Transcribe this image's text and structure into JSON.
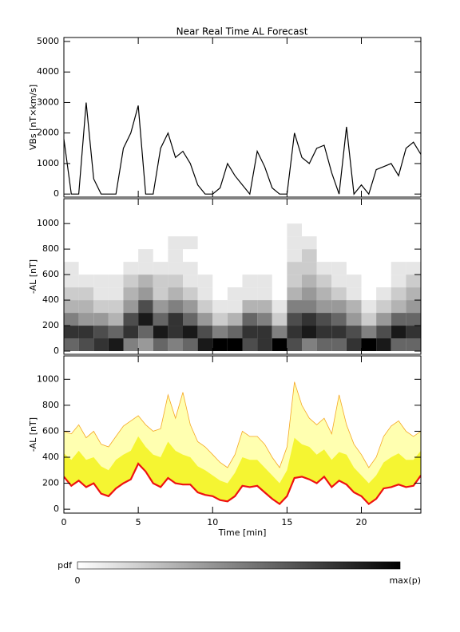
{
  "chart_data": [
    {
      "type": "line",
      "title": "Near Real Time AL Forecast",
      "ylabel": "VBs [nT×km/s]",
      "x": [
        0,
        0.5,
        1,
        1.5,
        2,
        2.5,
        3,
        3.5,
        4,
        4.5,
        5,
        5.5,
        6,
        6.5,
        7,
        7.5,
        8,
        8.5,
        9,
        9.5,
        10,
        10.5,
        11,
        11.5,
        12,
        12.5,
        13,
        13.5,
        14,
        14.5,
        15,
        15.5,
        16,
        16.5,
        17,
        17.5,
        18,
        18.5,
        19,
        19.5,
        20,
        20.5,
        21,
        21.5,
        22,
        22.5,
        23,
        23.5,
        24
      ],
      "series": [
        {
          "color": "#000000",
          "values": [
            1800,
            0,
            0,
            3000,
            500,
            0,
            0,
            0,
            1500,
            2000,
            2900,
            0,
            0,
            1500,
            2000,
            1200,
            1400,
            1000,
            300,
            0,
            0,
            200,
            1000,
            600,
            300,
            0,
            1400,
            900,
            200,
            0,
            0,
            2000,
            1200,
            1000,
            1500,
            1600,
            700,
            0,
            2200,
            0,
            300,
            0,
            800,
            900,
            1000,
            600,
            1500,
            1700,
            1300
          ]
        }
      ],
      "xlim": [
        0,
        24
      ],
      "xticks": [
        0,
        5,
        10,
        15,
        20
      ],
      "show_xtick_labels": false,
      "ylim": [
        -100,
        5130
      ],
      "yticks": [
        0,
        1000,
        2000,
        3000,
        4000,
        5000
      ]
    },
    {
      "type": "heatmap",
      "ylabel": "-AL [nT]",
      "x_bins": [
        0,
        1,
        2,
        3,
        4,
        5,
        6,
        7,
        8,
        9,
        10,
        11,
        12,
        13,
        14,
        15,
        16,
        17,
        18,
        19,
        20,
        21,
        22,
        23,
        24
      ],
      "y_bins": [
        0,
        100,
        200,
        300,
        400,
        500,
        600,
        700,
        800,
        900,
        1000
      ],
      "values": [
        [
          0.6,
          0.8,
          0.5,
          0.3,
          0.2,
          0.1,
          0.1,
          0,
          0,
          0
        ],
        [
          0.7,
          0.8,
          0.4,
          0.3,
          0.2,
          0.1,
          0,
          0,
          0,
          0
        ],
        [
          0.8,
          0.7,
          0.4,
          0.2,
          0.1,
          0.1,
          0,
          0,
          0,
          0
        ],
        [
          0.9,
          0.6,
          0.3,
          0.2,
          0.1,
          0.1,
          0,
          0,
          0,
          0
        ],
        [
          0.5,
          0.8,
          0.7,
          0.4,
          0.3,
          0.2,
          0.1,
          0,
          0,
          0
        ],
        [
          0.4,
          0.6,
          0.9,
          0.7,
          0.4,
          0.3,
          0.1,
          0.1,
          0,
          0
        ],
        [
          0.6,
          0.9,
          0.6,
          0.4,
          0.2,
          0.2,
          0.1,
          0,
          0,
          0
        ],
        [
          0.5,
          0.8,
          0.8,
          0.5,
          0.3,
          0.2,
          0.1,
          0.1,
          0.1,
          0
        ],
        [
          0.6,
          0.9,
          0.6,
          0.4,
          0.2,
          0.1,
          0.1,
          0,
          0.1,
          0
        ],
        [
          0.9,
          0.7,
          0.4,
          0.2,
          0.1,
          0.1,
          0,
          0,
          0,
          0
        ],
        [
          1,
          0.5,
          0.2,
          0.1,
          0,
          0,
          0,
          0,
          0,
          0
        ],
        [
          1,
          0.6,
          0.3,
          0.1,
          0.1,
          0,
          0,
          0,
          0,
          0
        ],
        [
          0.7,
          0.8,
          0.6,
          0.3,
          0.1,
          0.1,
          0,
          0,
          0,
          0
        ],
        [
          0.8,
          0.8,
          0.5,
          0.3,
          0.1,
          0.1,
          0,
          0,
          0,
          0
        ],
        [
          1,
          0.5,
          0.2,
          0.1,
          0,
          0,
          0,
          0,
          0,
          0
        ],
        [
          0.7,
          0.8,
          0.7,
          0.5,
          0.3,
          0.2,
          0.2,
          0.1,
          0.1,
          0.1
        ],
        [
          0.5,
          0.9,
          0.8,
          0.5,
          0.4,
          0.3,
          0.2,
          0.2,
          0.1,
          0
        ],
        [
          0.6,
          0.8,
          0.7,
          0.4,
          0.3,
          0.2,
          0.1,
          0,
          0,
          0
        ],
        [
          0.6,
          0.8,
          0.6,
          0.4,
          0.2,
          0.1,
          0.1,
          0,
          0,
          0
        ],
        [
          0.8,
          0.7,
          0.4,
          0.3,
          0.1,
          0.1,
          0,
          0,
          0,
          0
        ],
        [
          1,
          0.5,
          0.2,
          0.1,
          0,
          0,
          0,
          0,
          0,
          0
        ],
        [
          0.9,
          0.7,
          0.4,
          0.2,
          0.1,
          0,
          0,
          0,
          0,
          0
        ],
        [
          0.6,
          0.9,
          0.6,
          0.3,
          0.2,
          0.1,
          0.1,
          0,
          0,
          0
        ],
        [
          0.6,
          0.8,
          0.6,
          0.4,
          0.3,
          0.2,
          0.1,
          0,
          0,
          0
        ]
      ],
      "xlim": [
        0,
        24
      ],
      "xticks": [
        0,
        5,
        10,
        15,
        20
      ],
      "show_xtick_labels": false,
      "ylim": [
        -25,
        1195
      ],
      "yticks": [
        0,
        200,
        400,
        600,
        800,
        1000
      ],
      "colorbar": {
        "label": "pdf",
        "min_label": "0",
        "max_label": "max(p)"
      }
    },
    {
      "type": "band",
      "ylabel": "-AL [nT]",
      "xlabel": "Time [min]",
      "x": [
        0,
        0.5,
        1,
        1.5,
        2,
        2.5,
        3,
        3.5,
        4,
        4.5,
        5,
        5.5,
        6,
        6.5,
        7,
        7.5,
        8,
        8.5,
        9,
        9.5,
        10,
        10.5,
        11,
        11.5,
        12,
        12.5,
        13,
        13.5,
        14,
        14.5,
        15,
        15.5,
        16,
        16.5,
        17,
        17.5,
        18,
        18.5,
        19,
        19.5,
        20,
        20.5,
        21,
        21.5,
        22,
        22.5,
        23,
        23.5,
        24
      ],
      "series": [
        {
          "color": "#f5a623",
          "values": [
            600,
            580,
            650,
            550,
            600,
            500,
            480,
            560,
            640,
            680,
            720,
            650,
            600,
            620,
            880,
            700,
            900,
            650,
            520,
            480,
            420,
            360,
            320,
            420,
            600,
            560,
            560,
            500,
            400,
            320,
            480,
            980,
            800,
            700,
            650,
            700,
            580,
            880,
            650,
            500,
            420,
            320,
            400,
            560,
            640,
            680,
            600,
            560,
            600
          ]
        },
        {
          "color": "#f5f532",
          "values": [
            430,
            380,
            450,
            380,
            400,
            330,
            300,
            380,
            420,
            450,
            560,
            480,
            420,
            400,
            520,
            450,
            420,
            400,
            330,
            300,
            260,
            220,
            200,
            280,
            400,
            380,
            380,
            320,
            260,
            200,
            300,
            550,
            500,
            480,
            420,
            460,
            380,
            440,
            420,
            320,
            260,
            200,
            260,
            360,
            400,
            430,
            380,
            380,
            450
          ]
        },
        {
          "color": "#ee1111",
          "values": [
            250,
            180,
            220,
            170,
            200,
            120,
            100,
            160,
            200,
            230,
            350,
            290,
            200,
            170,
            240,
            200,
            190,
            190,
            130,
            110,
            100,
            70,
            60,
            100,
            180,
            170,
            180,
            130,
            80,
            40,
            100,
            240,
            250,
            230,
            200,
            250,
            170,
            220,
            190,
            130,
            100,
            40,
            80,
            160,
            170,
            190,
            170,
            180,
            260
          ]
        }
      ],
      "xlim": [
        0,
        24
      ],
      "xticks": [
        0,
        5,
        10,
        15,
        20
      ],
      "show_xtick_labels": true,
      "ylim": [
        -30,
        1180
      ],
      "yticks": [
        0,
        200,
        400,
        600,
        800,
        1000
      ]
    }
  ]
}
